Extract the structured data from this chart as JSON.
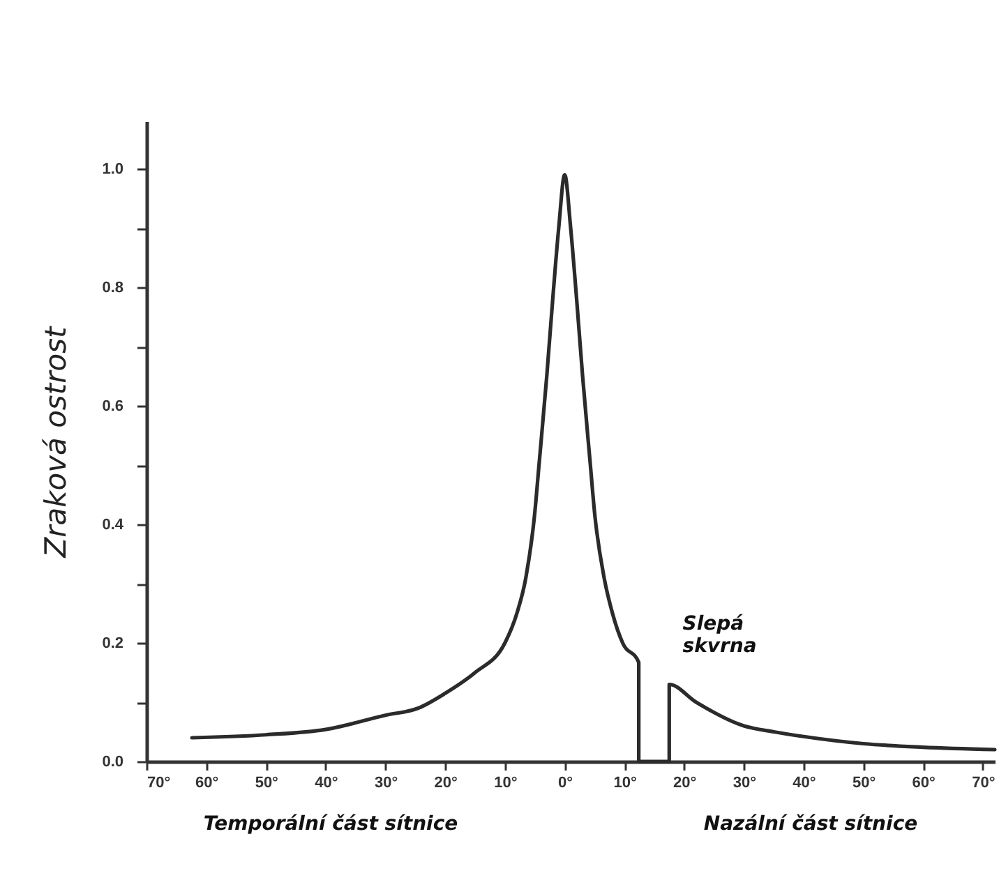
{
  "chart_data": {
    "type": "line",
    "ylabel": "Zraková ostrost",
    "x": [
      -62.4,
      -50,
      -40,
      -30,
      -24.5,
      -20,
      -15,
      -10,
      -8,
      -6.5,
      -5,
      -4.3,
      -3,
      -2,
      -1,
      0,
      1,
      2,
      3,
      4.3,
      5,
      6.6,
      8,
      9.7,
      12.4,
      12.4,
      17.5,
      17.5,
      22,
      30,
      35,
      40,
      50,
      60,
      72
    ],
    "series": [
      {
        "color": "#2b2b2b",
        "values": [
          0.04,
          0.045,
          0.054,
          0.078,
          0.09,
          0.115,
          0.15,
          0.2,
          0.25,
          0.31,
          0.42,
          0.5,
          0.65,
          0.78,
          0.9,
          0.99,
          0.9,
          0.78,
          0.65,
          0.5,
          0.42,
          0.31,
          0.25,
          0.2,
          0.167,
          0,
          0,
          0.13,
          0.1,
          0.06,
          0.05,
          0.042,
          0.03,
          0.024,
          0.02
        ]
      }
    ],
    "xlim": [
      -70,
      72
    ],
    "xticks": [
      {
        "value": -70,
        "label": "70°"
      },
      {
        "value": -60,
        "label": "60°"
      },
      {
        "value": -50,
        "label": "50°"
      },
      {
        "value": -40,
        "label": "40°"
      },
      {
        "value": -30,
        "label": "30°"
      },
      {
        "value": -20,
        "label": "20°"
      },
      {
        "value": -10,
        "label": "10°"
      },
      {
        "value": 0,
        "label": "0°"
      },
      {
        "value": 10,
        "label": "10°"
      },
      {
        "value": 20,
        "label": "20°"
      },
      {
        "value": 30,
        "label": "30°"
      },
      {
        "value": 40,
        "label": "40°"
      },
      {
        "value": 50,
        "label": "50°"
      },
      {
        "value": 60,
        "label": "60°"
      },
      {
        "value": 70,
        "label": "70°"
      }
    ],
    "ylim": [
      0,
      1.08
    ],
    "yticks": [
      {
        "value": 0,
        "label": "0.0"
      },
      {
        "value": 0.1,
        "label": null
      },
      0.2,
      {
        "value": 0.3,
        "label": null
      },
      0.4,
      {
        "value": 0.5,
        "label": null
      },
      0.6,
      {
        "value": 0.7,
        "label": null
      },
      0.8,
      {
        "value": 0.9,
        "label": null
      },
      {
        "value": 1,
        "label": "1.0"
      }
    ],
    "grid": false,
    "marker": "none",
    "line_style": "solid",
    "annotations": [
      "Slepá skvrna",
      "Temporální část sítnice",
      "Nazální část sítnice"
    ]
  }
}
